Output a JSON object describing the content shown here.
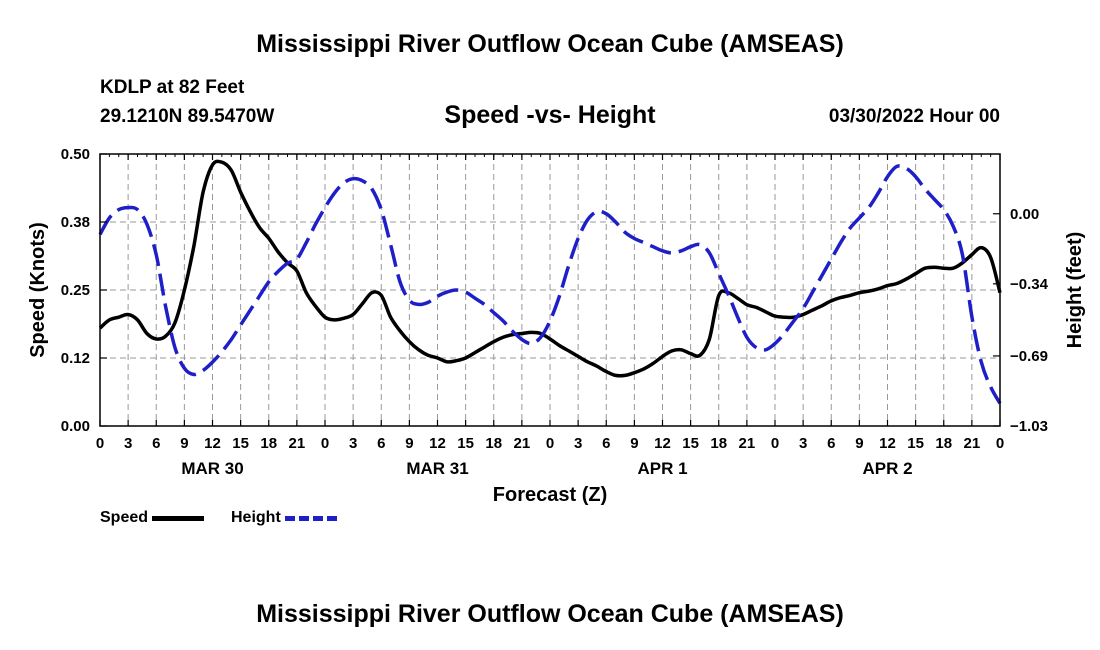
{
  "header": {
    "title": "Mississippi River Outflow Ocean Cube (AMSEAS)",
    "station": "KDLP at 82 Feet",
    "coords": "29.1210N  89.5470W",
    "subtitle": "Speed -vs- Height",
    "datetime": "03/30/2022 Hour 00"
  },
  "footer": {
    "title": "Mississippi River Outflow Ocean Cube (AMSEAS)"
  },
  "legend": {
    "speed": "Speed",
    "height": "Height"
  },
  "colors": {
    "speed": "#000000",
    "height": "#1f1fc8",
    "grid": "#999999"
  },
  "chart_data": {
    "type": "line",
    "xlabel": "Forecast (Z)",
    "ylabel_left": "Speed (Knots)",
    "ylabel_right": "Height (feet)",
    "x_hours_range": [
      0,
      96
    ],
    "x_tick_step_hours": 3,
    "x_tick_labels": [
      "0",
      "3",
      "6",
      "9",
      "12",
      "15",
      "18",
      "21",
      "0",
      "3",
      "6",
      "9",
      "12",
      "15",
      "18",
      "21",
      "0",
      "3",
      "6",
      "9",
      "12",
      "15",
      "18",
      "21",
      "0",
      "3",
      "6",
      "9",
      "12",
      "15",
      "18",
      "21",
      "0"
    ],
    "day_labels": [
      {
        "label": "MAR 30",
        "hour": 12
      },
      {
        "label": "MAR 31",
        "hour": 36
      },
      {
        "label": "APR 1",
        "hour": 60
      },
      {
        "label": "APR 2",
        "hour": 84
      }
    ],
    "ylim_left": [
      0,
      0.5
    ],
    "yticks_left": [
      "0.00",
      "0.12",
      "0.25",
      "0.38",
      "0.50"
    ],
    "ylim_right": [
      -1.03,
      0.29
    ],
    "yticks_right": [
      {
        "label": "0.00",
        "value": 0.0
      },
      {
        "label": "−0.34",
        "value": -0.34
      },
      {
        "label": "−0.69",
        "value": -0.69
      },
      {
        "label": "−1.03",
        "value": -1.03
      }
    ],
    "grid": true,
    "series": [
      {
        "name": "Speed",
        "axis": "left",
        "x": [
          0,
          1,
          2,
          3,
          4,
          5,
          6,
          7,
          8,
          9,
          10,
          11,
          12,
          13,
          14,
          15,
          16,
          17,
          18,
          19,
          20,
          21,
          22,
          23,
          24,
          25,
          26,
          27,
          28,
          29,
          30,
          31,
          32,
          33,
          34,
          35,
          36,
          37,
          38,
          39,
          40,
          41,
          42,
          43,
          44,
          45,
          46,
          47,
          48,
          49,
          50,
          51,
          52,
          53,
          54,
          55,
          56,
          57,
          58,
          59,
          60,
          61,
          62,
          63,
          64,
          65,
          66,
          67,
          68,
          69,
          70,
          71,
          72,
          73,
          74,
          75,
          76,
          77,
          78,
          79,
          80,
          81,
          82,
          83,
          84,
          85,
          86,
          87,
          88,
          89,
          90,
          91,
          92,
          93,
          94,
          95,
          96
        ],
        "values": [
          0.18,
          0.195,
          0.2,
          0.205,
          0.195,
          0.17,
          0.16,
          0.165,
          0.19,
          0.25,
          0.33,
          0.43,
          0.48,
          0.485,
          0.47,
          0.43,
          0.395,
          0.365,
          0.345,
          0.32,
          0.3,
          0.285,
          0.245,
          0.22,
          0.2,
          0.195,
          0.198,
          0.205,
          0.225,
          0.245,
          0.24,
          0.2,
          0.175,
          0.155,
          0.14,
          0.13,
          0.125,
          0.118,
          0.12,
          0.125,
          0.135,
          0.145,
          0.155,
          0.163,
          0.168,
          0.17,
          0.172,
          0.17,
          0.16,
          0.148,
          0.138,
          0.128,
          0.118,
          0.11,
          0.1,
          0.093,
          0.093,
          0.098,
          0.105,
          0.115,
          0.128,
          0.138,
          0.14,
          0.133,
          0.13,
          0.16,
          0.24,
          0.245,
          0.235,
          0.223,
          0.218,
          0.21,
          0.202,
          0.2,
          0.2,
          0.205,
          0.213,
          0.221,
          0.23,
          0.236,
          0.24,
          0.245,
          0.248,
          0.252,
          0.258,
          0.262,
          0.27,
          0.28,
          0.29,
          0.292,
          0.29,
          0.29,
          0.3,
          0.315,
          0.328,
          0.31,
          0.245
        ]
      },
      {
        "name": "Height",
        "axis": "right",
        "x": [
          0,
          1,
          2,
          3,
          4,
          5,
          6,
          7,
          8,
          9,
          10,
          11,
          12,
          13,
          14,
          15,
          16,
          17,
          18,
          19,
          20,
          21,
          22,
          23,
          24,
          25,
          26,
          27,
          28,
          29,
          30,
          31,
          32,
          33,
          34,
          35,
          36,
          37,
          38,
          39,
          40,
          41,
          42,
          43,
          44,
          45,
          46,
          47,
          48,
          49,
          50,
          51,
          52,
          53,
          54,
          55,
          56,
          57,
          58,
          59,
          60,
          61,
          62,
          63,
          64,
          65,
          66,
          67,
          68,
          69,
          70,
          71,
          72,
          73,
          74,
          75,
          76,
          77,
          78,
          79,
          80,
          81,
          82,
          83,
          84,
          85,
          86,
          87,
          88,
          89,
          90,
          91,
          92,
          93,
          94,
          95,
          96
        ],
        "values": [
          -0.1,
          -0.02,
          0.02,
          0.03,
          0.02,
          -0.05,
          -0.2,
          -0.45,
          -0.65,
          -0.75,
          -0.78,
          -0.76,
          -0.72,
          -0.67,
          -0.61,
          -0.54,
          -0.47,
          -0.4,
          -0.33,
          -0.28,
          -0.24,
          -0.22,
          -0.14,
          -0.05,
          0.03,
          0.1,
          0.15,
          0.17,
          0.16,
          0.12,
          0.02,
          -0.15,
          -0.33,
          -0.42,
          -0.44,
          -0.43,
          -0.4,
          -0.38,
          -0.37,
          -0.38,
          -0.41,
          -0.44,
          -0.48,
          -0.52,
          -0.57,
          -0.61,
          -0.63,
          -0.6,
          -0.52,
          -0.4,
          -0.25,
          -0.12,
          -0.03,
          0.01,
          0.0,
          -0.04,
          -0.09,
          -0.12,
          -0.14,
          -0.16,
          -0.18,
          -0.19,
          -0.18,
          -0.16,
          -0.15,
          -0.19,
          -0.29,
          -0.39,
          -0.5,
          -0.6,
          -0.65,
          -0.66,
          -0.63,
          -0.58,
          -0.52,
          -0.46,
          -0.38,
          -0.3,
          -0.22,
          -0.14,
          -0.07,
          -0.02,
          0.03,
          0.1,
          0.18,
          0.23,
          0.22,
          0.18,
          0.12,
          0.07,
          0.02,
          -0.06,
          -0.2,
          -0.5,
          -0.72,
          -0.84,
          -0.92
        ]
      }
    ]
  }
}
